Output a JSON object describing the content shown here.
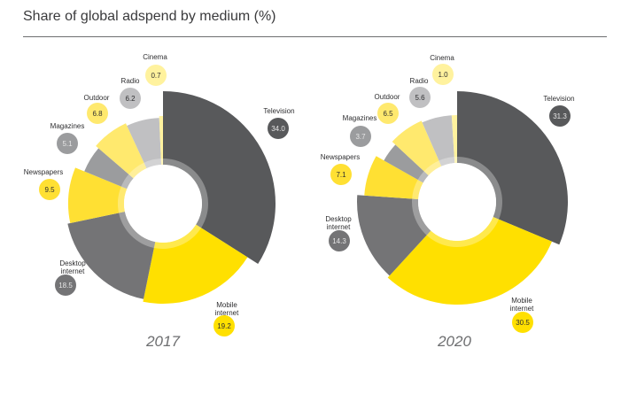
{
  "title": "Share of global adspend by medium (%)",
  "chart_data": [
    {
      "type": "pie",
      "title": "2017",
      "categories": [
        "Television",
        "Mobile internet",
        "Desktop internet",
        "Newspapers",
        "Magazines",
        "Outdoor",
        "Radio",
        "Cinema"
      ],
      "values": [
        34.0,
        19.2,
        18.5,
        9.5,
        5.1,
        6.8,
        6.2,
        0.7
      ],
      "value_labels": [
        "34.0",
        "19.2",
        "18.5",
        "9.5",
        "5.1",
        "6.8",
        "6.2",
        "0.7"
      ],
      "colors": [
        "#58595b",
        "#ffe000",
        "#747476",
        "#ffe033",
        "#9b9c9e",
        "#ffe96e",
        "#c0c0c2",
        "#fff29e"
      ]
    },
    {
      "type": "pie",
      "title": "2020",
      "categories": [
        "Television",
        "Mobile internet",
        "Desktop internet",
        "Newspapers",
        "Magazines",
        "Outdoor",
        "Radio",
        "Cinema"
      ],
      "values": [
        31.3,
        30.5,
        14.3,
        7.1,
        3.7,
        6.5,
        5.6,
        1.0
      ],
      "value_labels": [
        "31.3",
        "30.5",
        "14.3",
        "7.1",
        "3.7",
        "6.5",
        "5.6",
        "1.0"
      ],
      "colors": [
        "#58595b",
        "#ffe000",
        "#747476",
        "#ffe033",
        "#9b9c9e",
        "#ffe96e",
        "#c0c0c2",
        "#fff29e"
      ]
    }
  ]
}
